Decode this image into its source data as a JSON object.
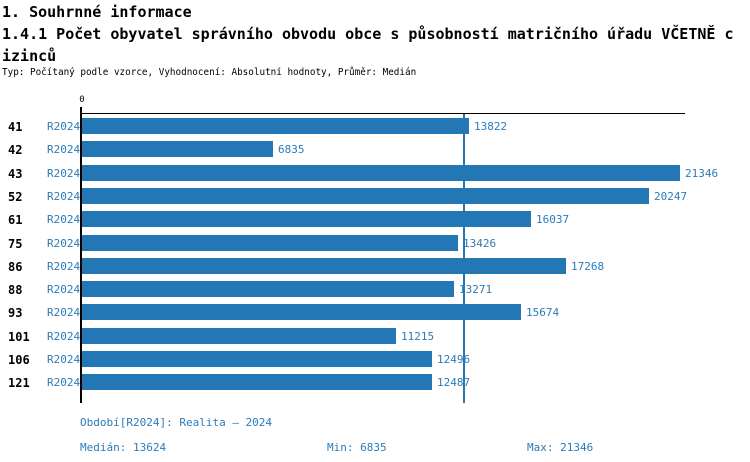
{
  "header": {
    "section_title": "1. Souhrnné informace",
    "title_lines": [
      "1.4.1 Počet obyvatel správního obvodu obce s působností matričního úřadu VČETNĚ c",
      "izinců"
    ],
    "subtitle": "Typ: Počítaný podle vzorce, Vyhodnocení: Absolutní hodnoty, Průměr: Medián"
  },
  "chart_data": {
    "type": "bar",
    "orientation": "horizontal",
    "title": "1.4.1 Počet obyvatel správního obvodu obce s působností matričního úřadu VČETNĚ cizinců",
    "categories": [
      "41",
      "42",
      "43",
      "52",
      "61",
      "75",
      "86",
      "88",
      "93",
      "101",
      "106",
      "121"
    ],
    "series": [
      {
        "name": "R2024",
        "values": [
          13822,
          6835,
          21346,
          20247,
          16037,
          13426,
          17268,
          13271,
          15674,
          11215,
          12496,
          12487
        ]
      }
    ],
    "x_axis": {
      "tick_labels": [
        "0"
      ],
      "min": 0,
      "max_scale_value": 21550,
      "position": "top",
      "grid": false
    },
    "median_reference_line": 13624,
    "bar_color": "#2277B4",
    "legend": "none"
  },
  "footer": {
    "period": "Období[R2024]: Realita – 2024",
    "median": "Medián: 13624",
    "min": "Min: 6835",
    "max": "Max: 21346"
  },
  "colors": {
    "accent_blue": "#2277B4",
    "text_blue": "#2B7BB9",
    "text_black": "#000000",
    "background": "#FFFFFF"
  }
}
